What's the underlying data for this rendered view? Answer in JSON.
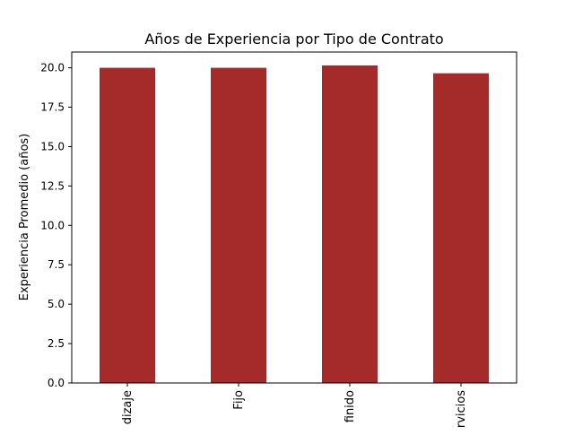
{
  "chart_data": {
    "type": "bar",
    "title": "Años de Experiencia por Tipo de Contrato",
    "xlabel": "",
    "ylabel": "Experiencia Promedio (años)",
    "categories": [
      "dizaje",
      "Fijo",
      "finido",
      "rvicios"
    ],
    "values": [
      20.0,
      20.0,
      20.15,
      19.65
    ],
    "ylim": [
      0,
      21.0
    ],
    "yticks": [
      0.0,
      2.5,
      5.0,
      7.5,
      10.0,
      12.5,
      15.0,
      17.5,
      20.0
    ],
    "ytick_labels": [
      "0.0",
      "2.5",
      "5.0",
      "7.5",
      "10.0",
      "12.5",
      "15.0",
      "17.5",
      "20.0"
    ],
    "bar_color": "#a52a2a",
    "grid": false,
    "legend": "none"
  }
}
